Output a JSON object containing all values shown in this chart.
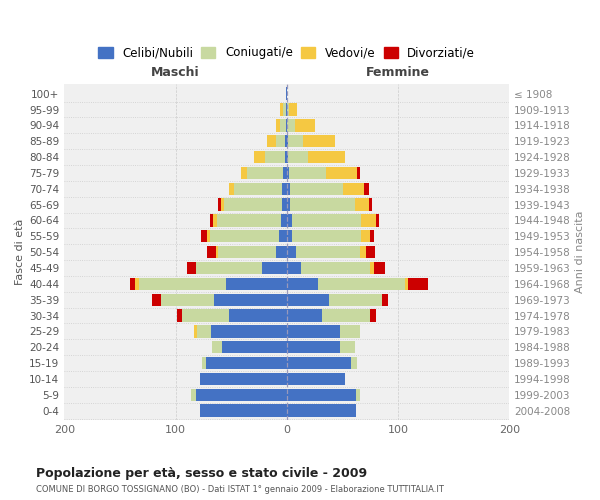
{
  "age_groups": [
    "0-4",
    "5-9",
    "10-14",
    "15-19",
    "20-24",
    "25-29",
    "30-34",
    "35-39",
    "40-44",
    "45-49",
    "50-54",
    "55-59",
    "60-64",
    "65-69",
    "70-74",
    "75-79",
    "80-84",
    "85-89",
    "90-94",
    "95-99",
    "100+"
  ],
  "birth_years": [
    "2004-2008",
    "1999-2003",
    "1994-1998",
    "1989-1993",
    "1984-1988",
    "1979-1983",
    "1974-1978",
    "1969-1973",
    "1964-1968",
    "1959-1963",
    "1954-1958",
    "1949-1953",
    "1944-1948",
    "1939-1943",
    "1934-1938",
    "1929-1933",
    "1924-1928",
    "1919-1923",
    "1914-1918",
    "1909-1913",
    "≤ 1908"
  ],
  "males_celibi": [
    78,
    82,
    78,
    73,
    58,
    68,
    52,
    65,
    55,
    22,
    10,
    7,
    5,
    4,
    4,
    3,
    2,
    2,
    1,
    1,
    1
  ],
  "males_coniugati": [
    0,
    4,
    0,
    3,
    9,
    13,
    42,
    48,
    78,
    60,
    52,
    62,
    58,
    52,
    43,
    33,
    18,
    8,
    5,
    2,
    0
  ],
  "males_vedovi": [
    0,
    0,
    0,
    0,
    0,
    2,
    0,
    0,
    3,
    0,
    2,
    3,
    3,
    3,
    5,
    5,
    9,
    8,
    4,
    3,
    0
  ],
  "males_divorziati": [
    0,
    0,
    0,
    0,
    0,
    0,
    5,
    8,
    5,
    8,
    8,
    5,
    3,
    3,
    0,
    0,
    0,
    0,
    0,
    0,
    0
  ],
  "females_nubili": [
    62,
    62,
    52,
    58,
    48,
    48,
    32,
    38,
    28,
    13,
    8,
    5,
    5,
    3,
    3,
    2,
    1,
    1,
    0,
    0,
    0
  ],
  "females_coniugate": [
    0,
    4,
    0,
    5,
    13,
    18,
    43,
    48,
    78,
    62,
    58,
    62,
    62,
    58,
    48,
    33,
    18,
    14,
    7,
    2,
    0
  ],
  "females_vedove": [
    0,
    0,
    0,
    0,
    0,
    0,
    0,
    0,
    3,
    3,
    5,
    8,
    13,
    13,
    18,
    28,
    33,
    28,
    18,
    7,
    0
  ],
  "females_divorziate": [
    0,
    0,
    0,
    0,
    0,
    0,
    5,
    5,
    18,
    10,
    8,
    3,
    3,
    3,
    5,
    3,
    0,
    0,
    0,
    0,
    0
  ],
  "color_celibi": "#4472C4",
  "color_coniugati": "#C8D9A0",
  "color_vedovi": "#F5C842",
  "color_divorziati": "#CC0000",
  "title": "Popolazione per età, sesso e stato civile - 2009",
  "subtitle": "COMUNE DI BORGO TOSSIGNANO (BO) - Dati ISTAT 1° gennaio 2009 - Elaborazione TUTTITALIA.IT",
  "legend_labels": [
    "Celibi/Nubili",
    "Coniugati/e",
    "Vedovi/e",
    "Divorziati/e"
  ],
  "ylabel_left": "Fasce di età",
  "ylabel_right": "Anni di nascita",
  "header_maschi": "Maschi",
  "header_femmine": "Femmine",
  "xlim": 200,
  "bg_color": "#F0F0F0"
}
